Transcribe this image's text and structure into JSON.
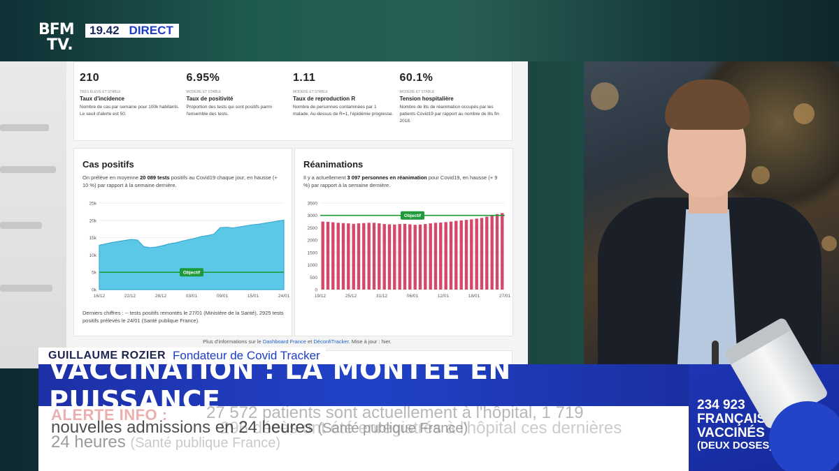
{
  "channel": {
    "logo_line1": "BFM",
    "logo_line2": "TV.",
    "time": "19.42",
    "live": "DIRECT"
  },
  "kpis": [
    {
      "value": "210",
      "tag": "Très élevé et stable",
      "name": "Taux d'incidence",
      "desc": "Nombre de cas par semaine pour 100k habitants. Le seuil d'alerte est 50."
    },
    {
      "value": "6.95%",
      "tag": "Modéré et stable",
      "name": "Taux de positivité",
      "desc": "Proportion des tests qui sont positifs parmi l'ensemble des tests."
    },
    {
      "value": "1.11",
      "tag": "Modéré et stable",
      "name": "Taux de reproduction R",
      "desc": "Nombre de personnes contaminées par 1 malade. Au-dessus de R=1, l'épidémie progresse."
    },
    {
      "value": "60.1%",
      "tag": "Modéré et stable",
      "name": "Tension hospitalière",
      "desc": "Nombre de lits de réanimation occupés par les patients Covid19 par rapport au nombre de lits fin 2018."
    }
  ],
  "cases_card": {
    "title": "Cas positifs",
    "sub_pre": "On prélève en moyenne ",
    "sub_bold": "20 089 tests",
    "sub_post": " positifs au Covid19 chaque jour, en hausse (+ 10 %) par rapport à la semaine dernière.",
    "footer": "Derniers chiffres : -- tests positifs remontés le 27/01 (Ministère de la Santé), 2925 tests positifs prélevés le 24/01 (Santé publique France).",
    "objective_label": "Objectif"
  },
  "icu_card": {
    "title": "Réanimations",
    "sub_pre": "Il y a actuellement ",
    "sub_bold": "3 097 personnes en réanimation",
    "sub_post": " pour Covid19, en hausse (+ 9 %) par rapport à la semaine dernière.",
    "objective_label": "Objectif"
  },
  "more_info": {
    "pre": "Plus d'informations sur le ",
    "link1": "Dashboard France",
    "mid": " et ",
    "link2": "DéconfiTracker",
    "post": ". Mise à jour : hier."
  },
  "lower_third": {
    "name": "Guillaume Rozier",
    "role": "Fondateur de Covid Tracker",
    "headline": "VACCINATION : LA MONTÉE EN PUISSANCE"
  },
  "ticker": {
    "alert_label": "ALERTE INFO :",
    "line1": "27 572 patients sont actuellement à l'hôpital, 1 719",
    "line2": "nouvelles admissions en 24 heures",
    "line2_src": "(Santé publique France)",
    "line3": "296 décès ont été enregistrés à l'hôpital ces dernières",
    "line4": "24 heures",
    "line4_src": "(Santé publique France)"
  },
  "vax_box": {
    "number": "234 923",
    "line1": "FRANÇAIS",
    "line2": "VACCINÉS",
    "line3": "(DEUX DOSES)"
  },
  "colors": {
    "bfm_blue": "#1c3cc8",
    "cases_fill": "#5bc8e8",
    "icu_bar": "#d6486a",
    "objective_green": "#1e9a3a"
  },
  "chart_data": [
    {
      "type": "area",
      "title": "Cas positifs",
      "x_ticks": [
        "16/12",
        "22/12",
        "28/12",
        "03/01",
        "09/01",
        "15/01",
        "24/01"
      ],
      "y_ticks": [
        "0k",
        "5k",
        "10k",
        "15k",
        "20k",
        "25k"
      ],
      "ylim": [
        0,
        25000
      ],
      "objective": 5000,
      "values": [
        12800,
        13200,
        13600,
        13900,
        14200,
        14500,
        14300,
        12400,
        12100,
        12300,
        12700,
        13200,
        13500,
        14000,
        14400,
        14800,
        15300,
        15600,
        16000,
        17900,
        18000,
        17800,
        18100,
        18400,
        18700,
        18900,
        19200,
        19500,
        19800,
        20089
      ]
    },
    {
      "type": "bar",
      "title": "Réanimations",
      "x_ticks": [
        "19/12",
        "25/12",
        "31/12",
        "06/01",
        "12/01",
        "18/01",
        "27/01"
      ],
      "y_ticks": [
        "0",
        "500",
        "1000",
        "1500",
        "2000",
        "2500",
        "3000",
        "3500"
      ],
      "ylim": [
        0,
        3500
      ],
      "objective": 3000,
      "values": [
        2750,
        2740,
        2720,
        2700,
        2690,
        2680,
        2660,
        2680,
        2690,
        2700,
        2700,
        2680,
        2650,
        2640,
        2630,
        2650,
        2660,
        2640,
        2620,
        2630,
        2650,
        2680,
        2700,
        2710,
        2730,
        2750,
        2780,
        2800,
        2820,
        2840,
        2870,
        2900,
        2950,
        3000,
        3050,
        3097
      ]
    }
  ]
}
